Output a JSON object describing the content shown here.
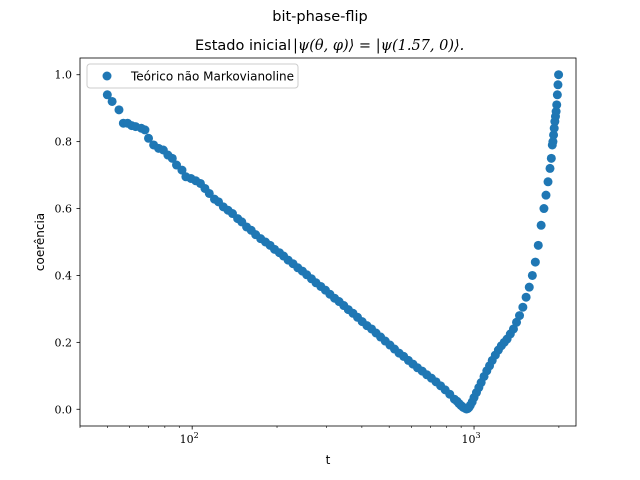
{
  "chart_data": {
    "type": "scatter",
    "suptitle": "bit-phase-flip",
    "title_prefix": "Estado inicial",
    "title_math": "|ψ(θ, φ)⟩ = |ψ(1.57, 0)⟩.",
    "xlabel": "t",
    "ylabel": "coerência",
    "xscale": "log",
    "xlim": [
      40,
      2300
    ],
    "ylim": [
      -0.05,
      1.05
    ],
    "xticks": [
      {
        "value": 100,
        "base": "10",
        "exp": "2"
      },
      {
        "value": 1000,
        "base": "10",
        "exp": "3"
      }
    ],
    "yticks": [
      {
        "value": 0.0,
        "label": "0.0"
      },
      {
        "value": 0.2,
        "label": "0.2"
      },
      {
        "value": 0.4,
        "label": "0.4"
      },
      {
        "value": 0.6,
        "label": "0.6"
      },
      {
        "value": 0.8,
        "label": "0.8"
      },
      {
        "value": 1.0,
        "label": "1.0"
      }
    ],
    "grid": false,
    "legend": "upper-left",
    "series": [
      {
        "name": "Teórico não Markovianoline",
        "color": "#1f77b4",
        "x": [
          50,
          52,
          55,
          57,
          59,
          61,
          63,
          66,
          68,
          70,
          73,
          76,
          79,
          82,
          85,
          88,
          92,
          95,
          99,
          103,
          107,
          111,
          115,
          120,
          124,
          129,
          134,
          139,
          145,
          150,
          156,
          162,
          168,
          175,
          182,
          189,
          196,
          204,
          211,
          219,
          228,
          237,
          246,
          255,
          265,
          275,
          286,
          297,
          308,
          320,
          332,
          345,
          358,
          372,
          386,
          401,
          417,
          433,
          449,
          466,
          484,
          503,
          522,
          542,
          563,
          585,
          607,
          630,
          655,
          680,
          706,
          733,
          761,
          790,
          820,
          852,
          870,
          885,
          900,
          915,
          930,
          940,
          950,
          960,
          970,
          985,
          1000,
          1020,
          1040,
          1060,
          1085,
          1110,
          1135,
          1160,
          1190,
          1220,
          1250,
          1280,
          1310,
          1345,
          1380,
          1415,
          1450,
          1490,
          1530,
          1570,
          1610,
          1650,
          1690,
          1730,
          1770,
          1800,
          1830,
          1860,
          1880,
          1895,
          1905,
          1915,
          1925,
          1935,
          1945,
          1955,
          1965,
          1975,
          1985,
          1995
        ],
        "y": [
          0.94,
          0.92,
          0.895,
          0.855,
          0.855,
          0.848,
          0.845,
          0.84,
          0.835,
          0.81,
          0.79,
          0.78,
          0.775,
          0.76,
          0.75,
          0.73,
          0.715,
          0.695,
          0.69,
          0.683,
          0.675,
          0.66,
          0.645,
          0.628,
          0.62,
          0.605,
          0.595,
          0.585,
          0.57,
          0.56,
          0.545,
          0.535,
          0.522,
          0.51,
          0.5,
          0.49,
          0.478,
          0.468,
          0.458,
          0.446,
          0.435,
          0.423,
          0.413,
          0.402,
          0.39,
          0.378,
          0.367,
          0.356,
          0.344,
          0.332,
          0.322,
          0.31,
          0.298,
          0.287,
          0.275,
          0.262,
          0.25,
          0.24,
          0.228,
          0.216,
          0.204,
          0.192,
          0.18,
          0.168,
          0.158,
          0.146,
          0.135,
          0.124,
          0.114,
          0.103,
          0.093,
          0.082,
          0.07,
          0.058,
          0.045,
          0.03,
          0.024,
          0.017,
          0.011,
          0.006,
          0.003,
          0.001,
          0.002,
          0.006,
          0.012,
          0.022,
          0.035,
          0.05,
          0.065,
          0.08,
          0.098,
          0.115,
          0.13,
          0.146,
          0.162,
          0.177,
          0.19,
          0.2,
          0.21,
          0.225,
          0.24,
          0.26,
          0.28,
          0.305,
          0.335,
          0.365,
          0.4,
          0.44,
          0.49,
          0.55,
          0.6,
          0.64,
          0.68,
          0.72,
          0.75,
          0.79,
          0.8,
          0.82,
          0.84,
          0.86,
          0.875,
          0.89,
          0.91,
          0.94,
          0.97,
          1.0
        ]
      }
    ]
  }
}
